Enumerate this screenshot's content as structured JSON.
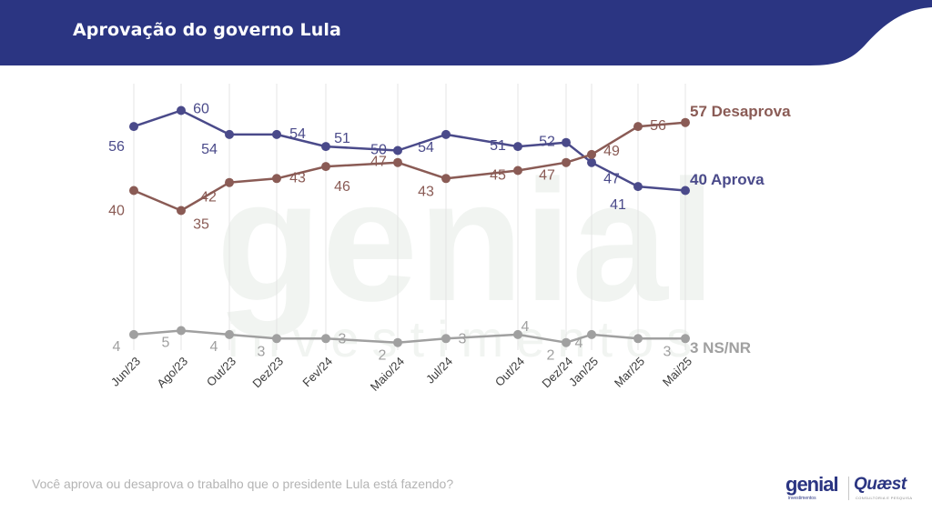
{
  "header": {
    "title": "Aprovação do governo Lula"
  },
  "footer": {
    "question": "Você aprova ou desaprova o trabalho que o presidente Lula está fazendo?",
    "logo_genial": "genial",
    "logo_genial_sub": "investimentos",
    "logo_quaest": "Quæst",
    "logo_quaest_sub": "CONSULTORIA E PESQUISA",
    "watermark": "genial investimentos"
  },
  "colors": {
    "header_bg": "#2b3582",
    "aprova": "#4a4a8a",
    "desaprova": "#8a5b55",
    "nsnr": "#a0a0a0",
    "grid": "#e4e4e4"
  },
  "chart_data": {
    "type": "line",
    "categories": [
      "Jun/23",
      "Ago/23",
      "Out/23",
      "Dez/23",
      "Fev/24",
      "Maio/24",
      "Jul/24",
      "Out/24",
      "Dez/24",
      "Jan/25",
      "Mar/25",
      "Mai/25"
    ],
    "series": [
      {
        "key": "aprova",
        "name": "Aprova",
        "values": [
          56,
          60,
          54,
          54,
          51,
          50,
          54,
          51,
          52,
          47,
          41,
          40
        ]
      },
      {
        "key": "desaprova",
        "name": "Desaprova",
        "values": [
          40,
          35,
          42,
          43,
          46,
          47,
          43,
          45,
          47,
          49,
          56,
          57
        ]
      },
      {
        "key": "nsnr",
        "name": "NS/NR",
        "values": [
          4,
          5,
          4,
          3,
          3,
          2,
          3,
          4,
          2,
          4,
          3,
          3
        ]
      }
    ],
    "end_labels": [
      "57 Desaprova",
      "40 Aprova",
      "3 NS/NR"
    ],
    "grid": "vertical",
    "legend": "none"
  }
}
